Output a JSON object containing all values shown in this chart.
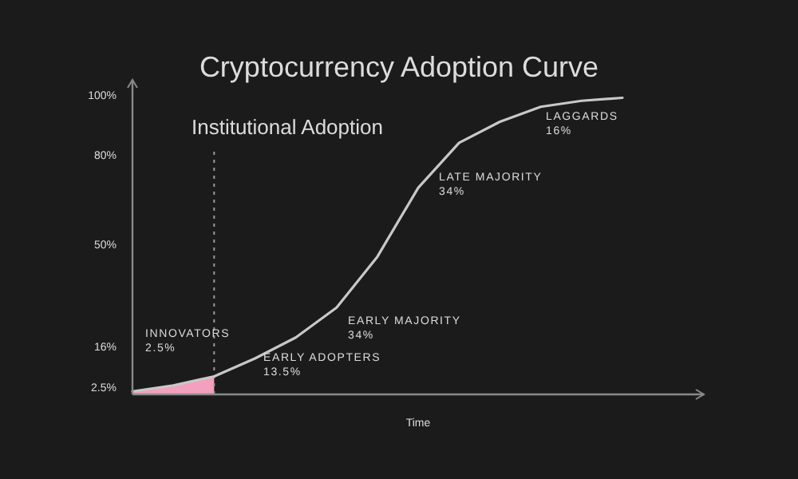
{
  "chart_data": {
    "type": "line",
    "title": "Cryptocurrency Adoption Curve",
    "xlabel": "Time",
    "categories": [
      null,
      null,
      null,
      null,
      null,
      null,
      null,
      null,
      null,
      null,
      null,
      null,
      null
    ],
    "ylim": [
      0,
      105
    ],
    "yticks": [
      {
        "value": 2.5,
        "label": "2.5%"
      },
      {
        "value": 16,
        "label": "16%"
      },
      {
        "value": 50,
        "label": "50%"
      },
      {
        "value": 80,
        "label": "80%"
      },
      {
        "value": 100,
        "label": "100%"
      }
    ],
    "marker": "none",
    "line_style": "solid",
    "series": [
      {
        "type": "area",
        "color": "#f2a0bd",
        "values": [
          1,
          3,
          6,
          null,
          null,
          null,
          null,
          null,
          null,
          null,
          null,
          null,
          null
        ]
      },
      {
        "color": "#c8c8c8",
        "values": [
          1,
          3,
          6,
          12,
          19,
          29,
          46,
          69,
          84,
          91,
          96,
          98,
          99
        ]
      }
    ],
    "annotations": [
      "Institutional Adoption",
      "INNOVATORS\n2.5%",
      "EARLY ADOPTERS\n13.5%",
      "EARLY MAJORITY\n34%",
      "LATE MAJORITY\n34%",
      "LAGGARDS\n16%"
    ]
  }
}
